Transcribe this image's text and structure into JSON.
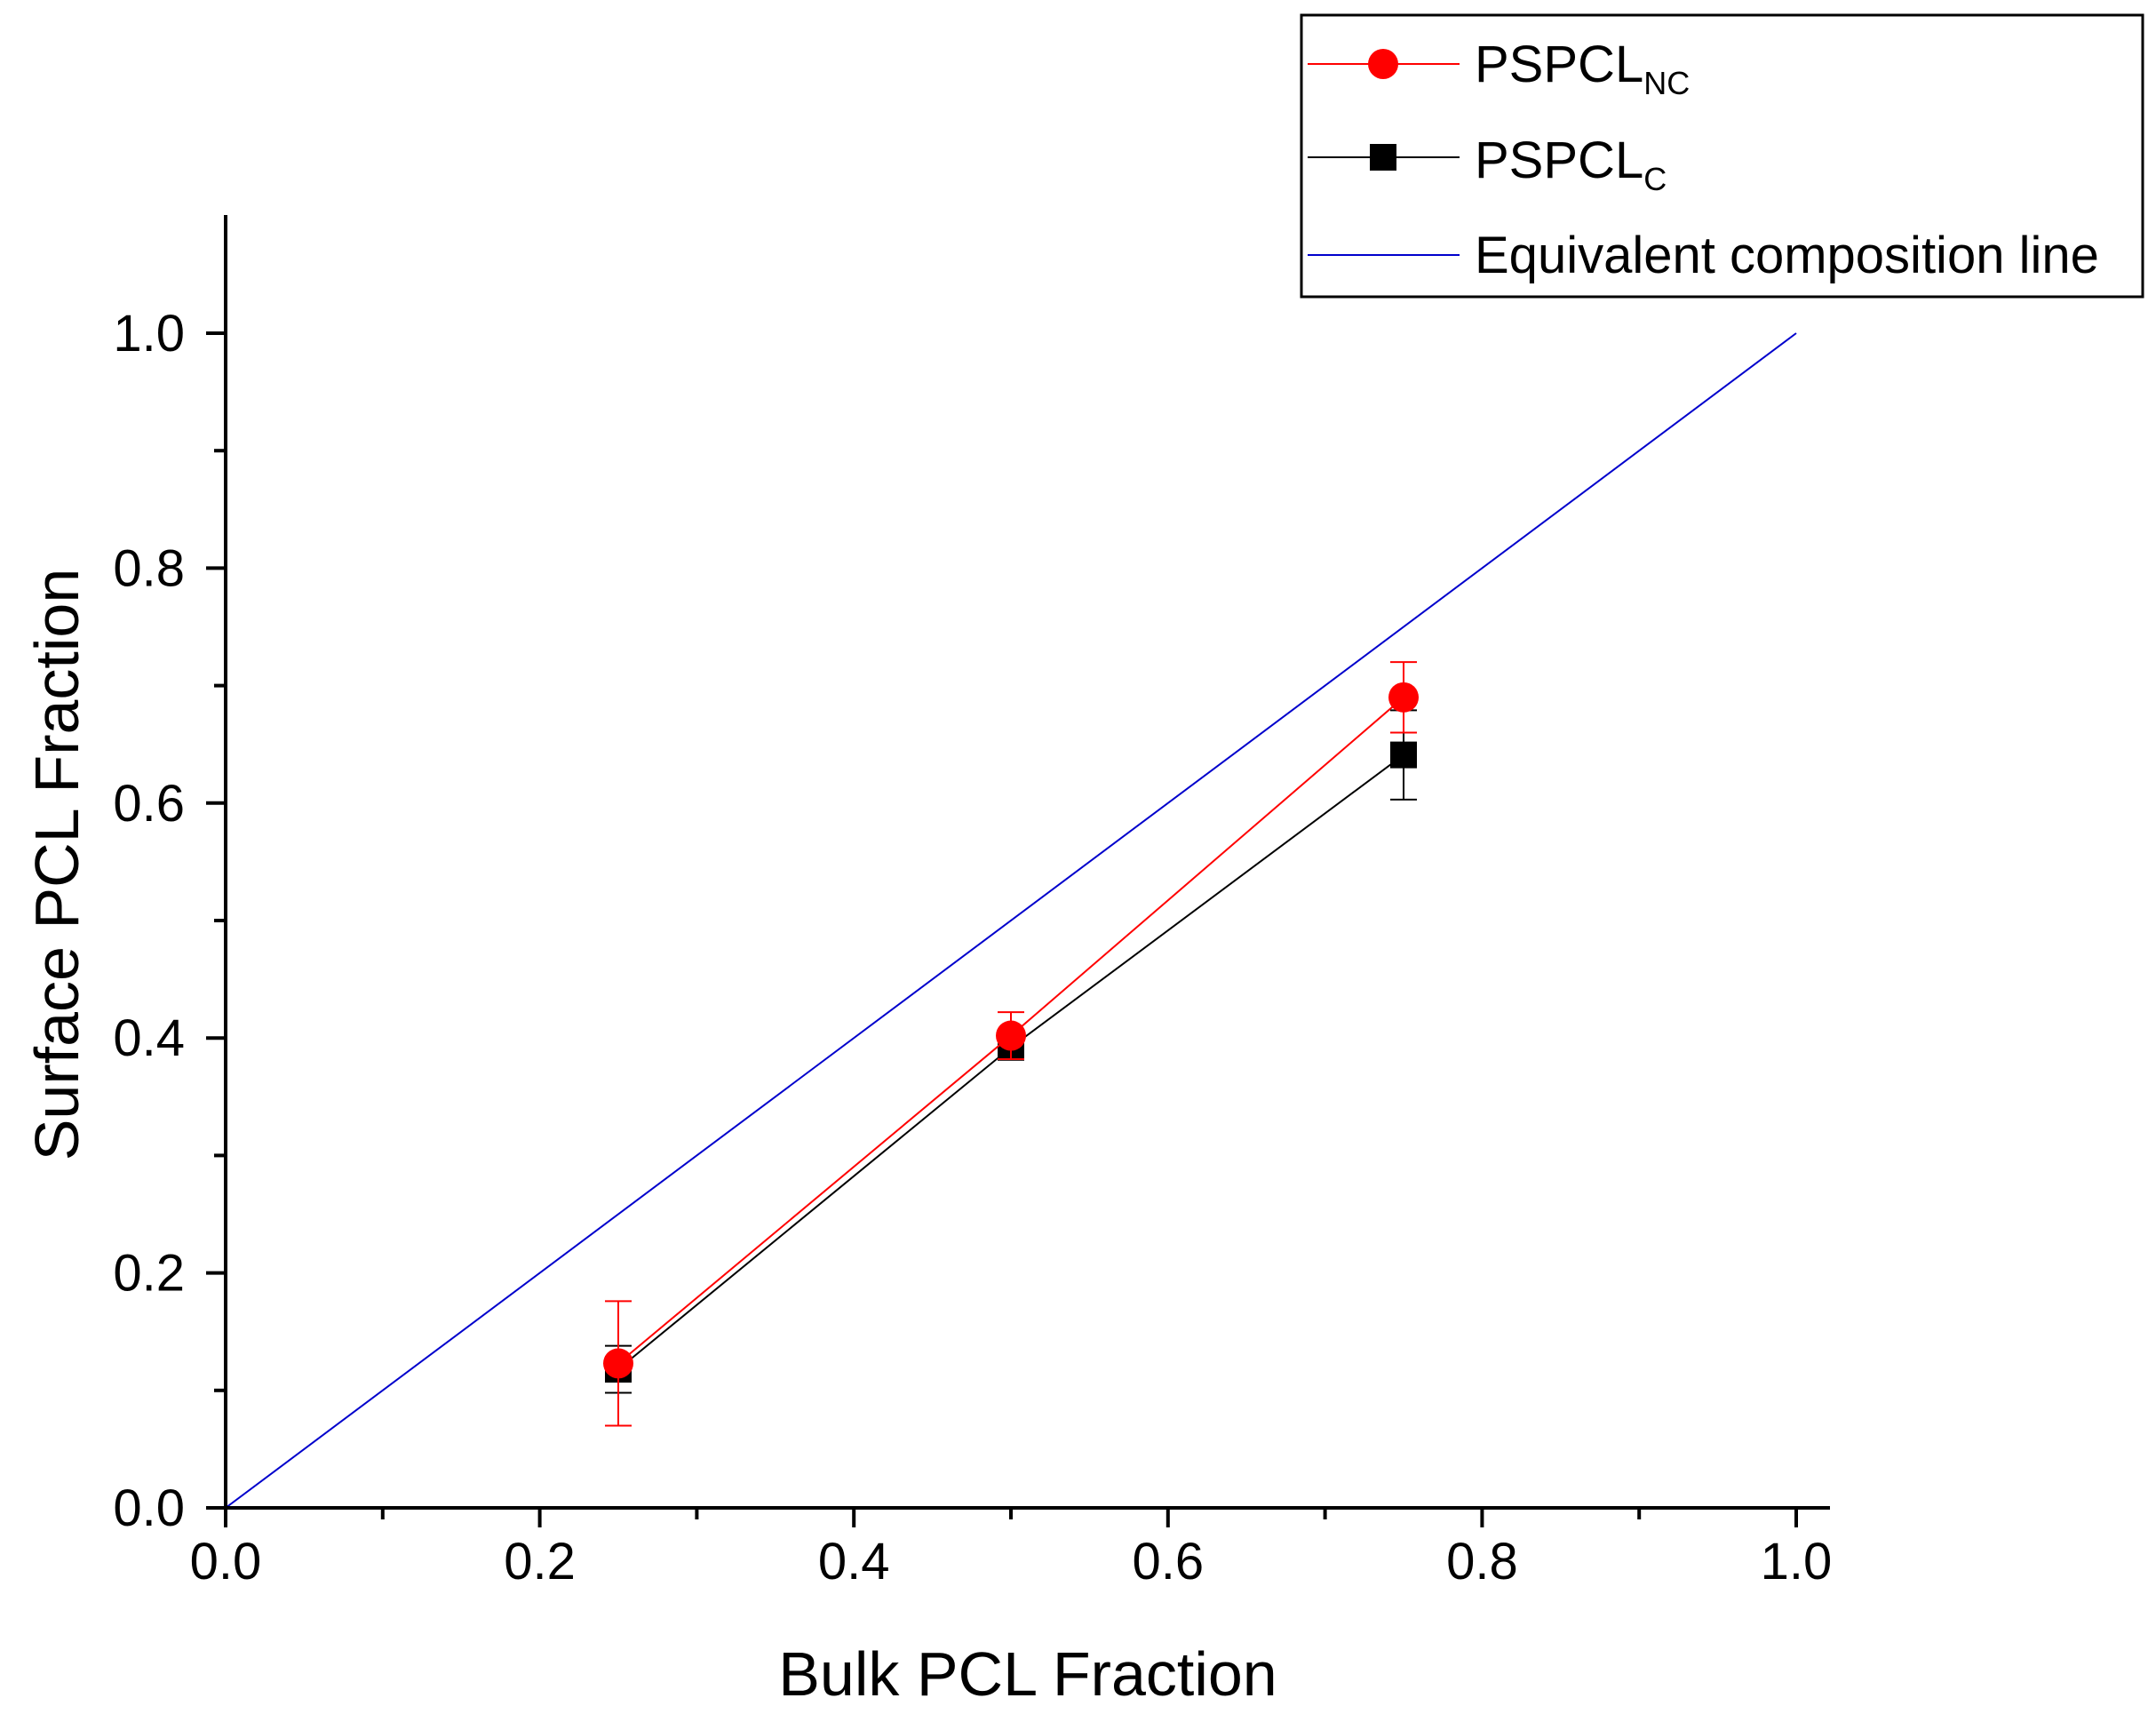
{
  "chart_data": {
    "type": "scatter",
    "title": "",
    "xlabel": "Bulk PCL Fraction",
    "ylabel": "Surface PCL Fraction",
    "xlim": [
      0.0,
      1.02
    ],
    "ylim": [
      0.0,
      1.1
    ],
    "x_ticks": [
      "0.0",
      "0.2",
      "0.4",
      "0.6",
      "0.8",
      "1.0"
    ],
    "y_ticks": [
      "0.0",
      "0.2",
      "0.4",
      "0.6",
      "0.8",
      "1.0"
    ],
    "grid": false,
    "legend_position": "top-right",
    "series": [
      {
        "name": "PSPCL",
        "subscript": "NC",
        "color": "#ff0000",
        "marker": "circle",
        "x": [
          0.25,
          0.5,
          0.75
        ],
        "y": [
          0.123,
          0.402,
          0.69
        ],
        "error": [
          0.053,
          0.02,
          0.03
        ]
      },
      {
        "name": "PSPCL",
        "subscript": "C",
        "color": "#000000",
        "marker": "square",
        "x": [
          0.25,
          0.5,
          0.75
        ],
        "y": [
          0.118,
          0.392,
          0.641
        ],
        "error": [
          0.02,
          0.01,
          0.038
        ]
      },
      {
        "name": "Equivalent composition line",
        "color": "#0000cc",
        "marker": "none",
        "x": [
          0.0,
          1.0
        ],
        "y": [
          0.0,
          1.0
        ]
      }
    ]
  }
}
